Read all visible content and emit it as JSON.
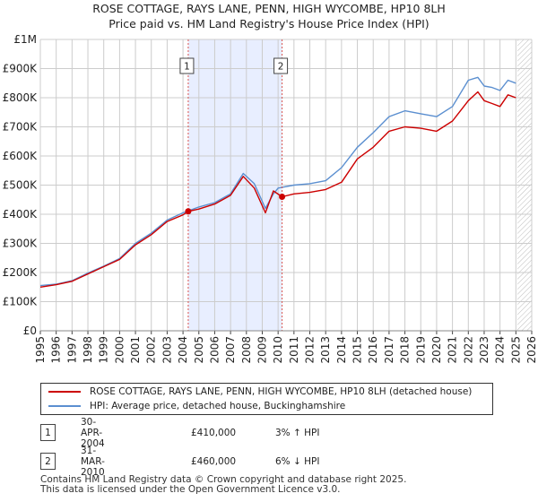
{
  "title_line1": "ROSE COTTAGE, RAYS LANE, PENN, HIGH WYCOMBE, HP10 8LH",
  "title_line2": "Price paid vs. HM Land Registry's House Price Index (HPI)",
  "colors": {
    "price_paid": "#cc0000",
    "hpi": "#5b8fd0",
    "band": "#e8eeff",
    "grid": "#cccccc",
    "marker_line": "#d9534f"
  },
  "chart_data": {
    "type": "line",
    "xlim": [
      1995,
      2026
    ],
    "ylim": [
      0,
      1000000
    ],
    "x_ticks": [
      "1995",
      "1996",
      "1997",
      "1998",
      "1999",
      "2000",
      "2001",
      "2002",
      "2003",
      "2004",
      "2005",
      "2006",
      "2007",
      "2008",
      "2009",
      "2010",
      "2011",
      "2012",
      "2013",
      "2014",
      "2015",
      "2016",
      "2017",
      "2018",
      "2019",
      "2020",
      "2021",
      "2022",
      "2023",
      "2024",
      "2025",
      "2026"
    ],
    "y_ticks": [
      {
        "value": 0,
        "label": "£0"
      },
      {
        "value": 100000,
        "label": "£100K"
      },
      {
        "value": 200000,
        "label": "£200K"
      },
      {
        "value": 300000,
        "label": "£300K"
      },
      {
        "value": 400000,
        "label": "£400K"
      },
      {
        "value": 500000,
        "label": "£500K"
      },
      {
        "value": 600000,
        "label": "£600K"
      },
      {
        "value": 700000,
        "label": "£700K"
      },
      {
        "value": 800000,
        "label": "£800K"
      },
      {
        "value": 900000,
        "label": "£900K"
      },
      {
        "value": 1000000,
        "label": "£1M"
      }
    ],
    "shaded_band": [
      2004.33,
      2010.25
    ],
    "hatched_from": 2025.1,
    "series": [
      {
        "name": "ROSE COTTAGE, RAYS LANE, PENN, HIGH WYCOMBE, HP10 8LH (detached house)",
        "color": "#cc0000",
        "x": [
          1995,
          1996,
          1997,
          1998,
          1999,
          2000,
          2001,
          2002,
          2003,
          2004,
          2004.33,
          2005,
          2006,
          2007,
          2007.8,
          2008.5,
          2009.2,
          2009.7,
          2010.25,
          2011,
          2012,
          2013,
          2014,
          2015,
          2016,
          2017,
          2018,
          2019,
          2020,
          2021,
          2022,
          2022.6,
          2023,
          2023.5,
          2024,
          2024.5,
          2025
        ],
        "values": [
          150000,
          158000,
          170000,
          195000,
          220000,
          245000,
          295000,
          330000,
          375000,
          398000,
          410000,
          418000,
          435000,
          465000,
          530000,
          490000,
          405000,
          480000,
          460000,
          470000,
          475000,
          485000,
          510000,
          590000,
          630000,
          685000,
          700000,
          695000,
          685000,
          720000,
          790000,
          820000,
          790000,
          780000,
          770000,
          810000,
          800000
        ]
      },
      {
        "name": "HPI: Average price, detached house, Buckinghamshire",
        "color": "#5b8fd0",
        "x": [
          1995,
          1996,
          1997,
          1998,
          1999,
          2000,
          2001,
          2002,
          2003,
          2004,
          2005,
          2006,
          2007,
          2007.8,
          2008.5,
          2009.2,
          2009.7,
          2010,
          2011,
          2012,
          2013,
          2014,
          2015,
          2016,
          2017,
          2018,
          2019,
          2020,
          2021,
          2022,
          2022.6,
          2023,
          2023.5,
          2024,
          2024.5,
          2025
        ],
        "values": [
          155000,
          160000,
          172000,
          198000,
          222000,
          248000,
          300000,
          335000,
          380000,
          405000,
          425000,
          440000,
          470000,
          540000,
          505000,
          420000,
          470000,
          490000,
          500000,
          505000,
          515000,
          560000,
          630000,
          680000,
          735000,
          755000,
          745000,
          735000,
          770000,
          860000,
          870000,
          840000,
          835000,
          825000,
          860000,
          850000
        ]
      }
    ],
    "sale_points": [
      {
        "label": "1",
        "x": 2004.33,
        "value": 410000
      },
      {
        "label": "2",
        "x": 2010.25,
        "value": 460000
      }
    ]
  },
  "legend": {
    "price_label": "ROSE COTTAGE, RAYS LANE, PENN, HIGH WYCOMBE, HP10 8LH (detached house)",
    "hpi_label": "HPI: Average price, detached house, Buckinghamshire"
  },
  "transactions": [
    {
      "num": "1",
      "date": "30-APR-2004",
      "price": "£410,000",
      "hpi": "3% ↑ HPI"
    },
    {
      "num": "2",
      "date": "31-MAR-2010",
      "price": "£460,000",
      "hpi": "6% ↓ HPI"
    }
  ],
  "footer": {
    "line1": "Contains HM Land Registry data © Crown copyright and database right 2025.",
    "line2": "This data is licensed under the Open Government Licence v3.0."
  }
}
